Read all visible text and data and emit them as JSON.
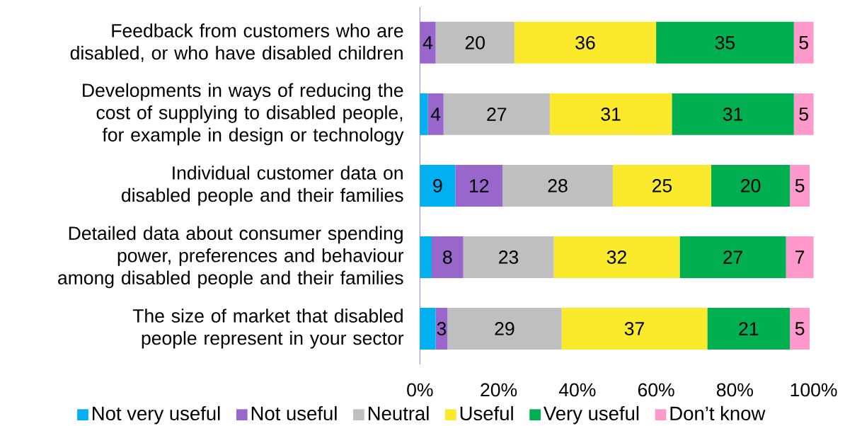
{
  "chart_data": {
    "type": "bar",
    "orientation": "horizontal",
    "stacked": true,
    "categories": [
      "Feedback from customers who are disabled, or who have disabled children",
      "Developments in ways of reducing the cost of supplying to disabled people, for example in design or technology",
      "Individual customer data on disabled people and their families",
      "Detailed data about consumer spending power, preferences and behaviour among disabled people and their families",
      "The size of market that disabled people represent in your sector"
    ],
    "series": [
      {
        "name": "Not very useful",
        "color": "#00b0f0",
        "values": [
          0,
          2,
          9,
          3,
          4
        ],
        "value_labels": [
          null,
          null,
          "9",
          null,
          null
        ]
      },
      {
        "name": "Not useful",
        "color": "#9966cc",
        "values": [
          4,
          4,
          12,
          8,
          3
        ],
        "value_labels": [
          "4",
          "4",
          "12",
          "8",
          "3"
        ]
      },
      {
        "name": "Neutral",
        "color": "#bfbfbf",
        "values": [
          20,
          27,
          28,
          23,
          29
        ],
        "value_labels": [
          "20",
          "27",
          "28",
          "23",
          "29"
        ]
      },
      {
        "name": "Useful",
        "color": "#fbe92b",
        "values": [
          36,
          31,
          25,
          32,
          37
        ],
        "value_labels": [
          "36",
          "31",
          "25",
          "32",
          "37"
        ]
      },
      {
        "name": "Very useful",
        "color": "#00b050",
        "values": [
          35,
          31,
          20,
          27,
          21
        ],
        "value_labels": [
          "35",
          "31",
          "20",
          "27",
          "21"
        ]
      },
      {
        "name": "Don’t know",
        "color": "#ff99cc",
        "values": [
          5,
          5,
          5,
          7,
          5
        ],
        "value_labels": [
          "5",
          "5",
          "5",
          "7",
          "5"
        ]
      }
    ],
    "xlim": [
      0,
      100
    ],
    "xticks": [
      {
        "value": 0,
        "label": "0%"
      },
      {
        "value": 20,
        "label": "20%"
      },
      {
        "value": 40,
        "label": "40%"
      },
      {
        "value": 60,
        "label": "60%"
      },
      {
        "value": 80,
        "label": "80%"
      },
      {
        "value": 100,
        "label": "100%"
      }
    ],
    "grid": false,
    "legend": "bottom"
  }
}
